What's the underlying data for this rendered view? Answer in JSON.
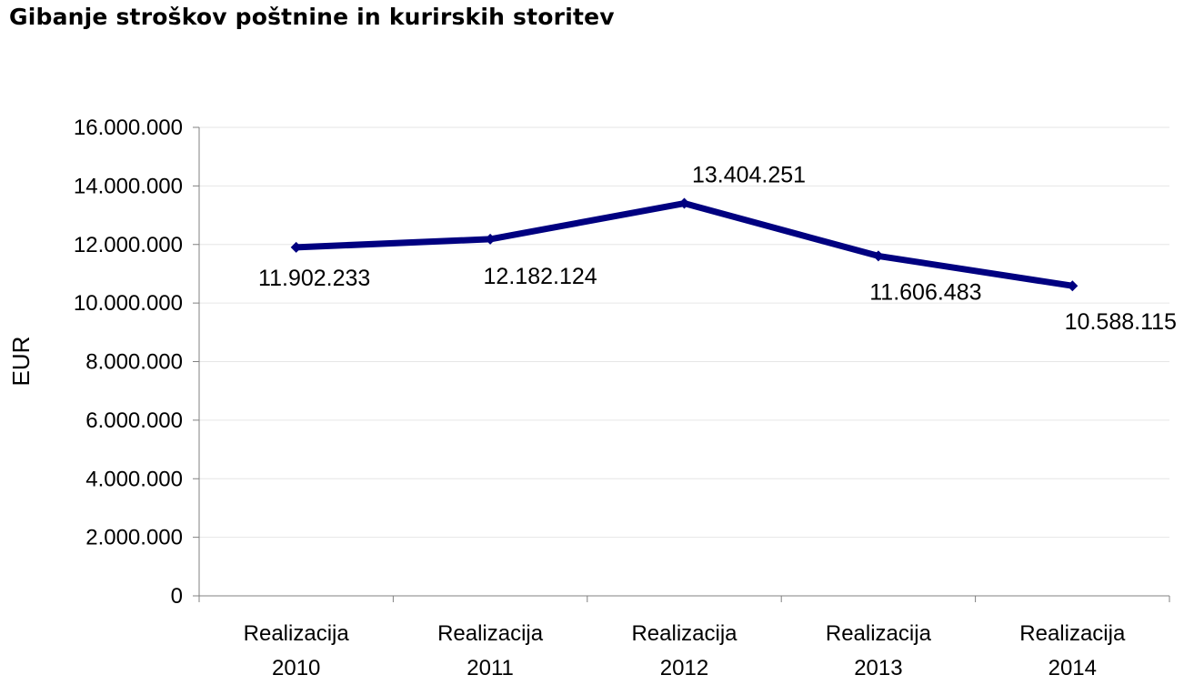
{
  "chart_data": {
    "type": "line",
    "title": "Gibanje stroškov poštnine in kurirskih storitev",
    "xlabel": "",
    "ylabel": "EUR",
    "ylim": [
      0,
      16000000
    ],
    "yticks": [
      0,
      2000000,
      4000000,
      6000000,
      8000000,
      10000000,
      12000000,
      14000000,
      16000000
    ],
    "ytick_labels": [
      "0",
      "2.000.000",
      "4.000.000",
      "6.000.000",
      "8.000.000",
      "10.000.000",
      "12.000.000",
      "14.000.000",
      "16.000.000"
    ],
    "categories": [
      [
        "Realizacija",
        "2010"
      ],
      [
        "Realizacija",
        "2011"
      ],
      [
        "Realizacija",
        "2012"
      ],
      [
        "Realizacija",
        "2013"
      ],
      [
        "Realizacija",
        "2014"
      ]
    ],
    "series": [
      {
        "values": [
          11902233,
          12182124,
          13404251,
          11606483,
          10588115
        ],
        "labels": [
          "11.902.233",
          "12.182.124",
          "13.404.251",
          "11.606.483",
          "10.588.115"
        ],
        "color": "#000080"
      }
    ],
    "grid": true,
    "gridline_color": "#e6e6e6",
    "legend": "none"
  }
}
